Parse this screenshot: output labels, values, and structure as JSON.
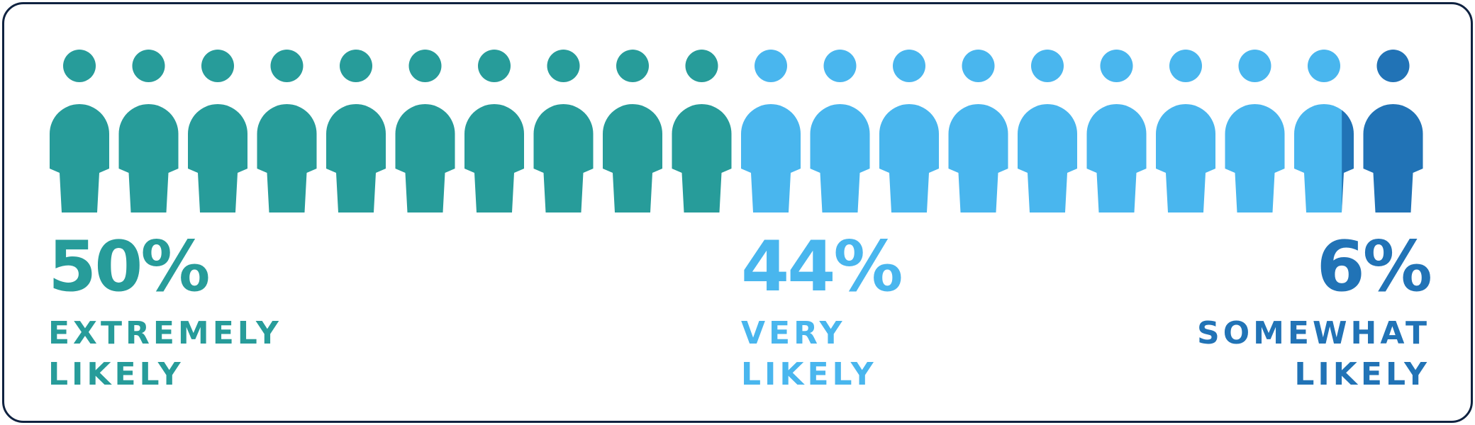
{
  "chart_data": {
    "type": "pictograph",
    "total_icons": 20,
    "segments": [
      {
        "percent_label": "50%",
        "value": 50,
        "label": "EXTREMELY\nLIKELY",
        "color": "#279c9a",
        "align": "left"
      },
      {
        "percent_label": "44%",
        "value": 44,
        "label": "VERY\nLIKELY",
        "color": "#49b6ee",
        "align": "left"
      },
      {
        "percent_label": "6%",
        "value": 6,
        "label": "SOMEWHAT\nLIKELY",
        "color": "#2173b6",
        "align": "right"
      }
    ]
  },
  "icons": {
    "person": "person-icon"
  },
  "colors": {
    "border": "#0f2240",
    "background": "#ffffff"
  }
}
